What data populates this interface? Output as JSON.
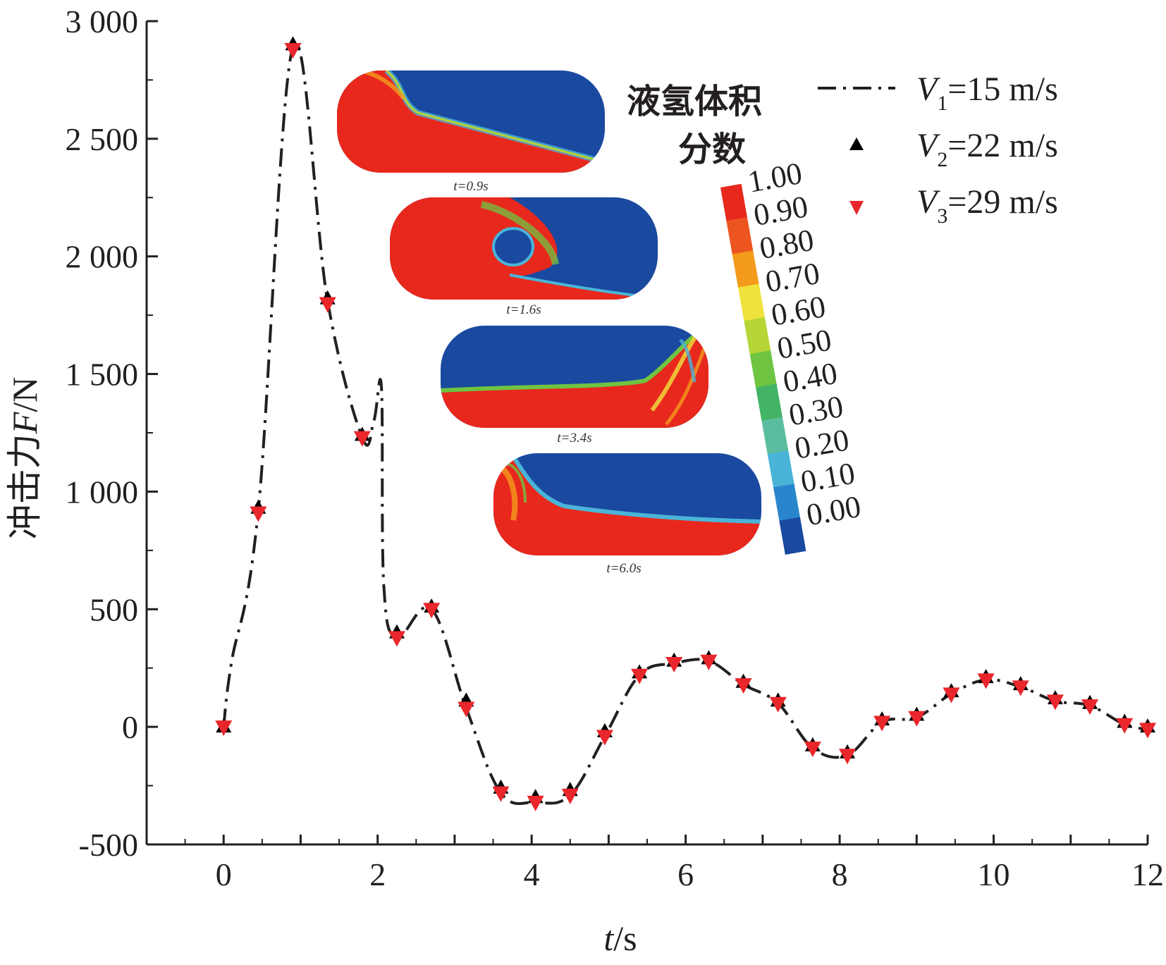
{
  "colors": {
    "axis": "#231f20",
    "line": "#231f20",
    "marker_v2": "#000000",
    "marker_v3": "#e8262b",
    "liquid": "#e8281d",
    "vapor": "#1a49a0"
  },
  "chart_data": {
    "type": "line",
    "xlabel": "t/s",
    "ylabel": "冲击力F/N",
    "xlim": [
      -1,
      12
    ],
    "ylim": [
      -500,
      3000
    ],
    "x_ticks": [
      0,
      2,
      4,
      6,
      8,
      10,
      12
    ],
    "y_ticks": [
      -500,
      0,
      500,
      1000,
      1500,
      2000,
      2500,
      3000
    ],
    "x_tick_labels": [
      "0",
      "2",
      "4",
      "6",
      "8",
      "10",
      "12"
    ],
    "y_tick_labels": [
      "-500",
      "0",
      "500",
      "1 000",
      "1 500",
      "2 000",
      "2 500",
      "3 000"
    ],
    "legend_position": "top-right",
    "series": [
      {
        "name": "V1=15 m/s",
        "name_parts": {
          "main": "V",
          "sub": "1",
          "rest": "=15 m/s"
        },
        "style": "dash-dot line",
        "x": [
          0,
          0.1,
          0.45,
          0.9,
          1.35,
          1.8,
          1.95,
          2.05,
          2.08,
          2.25,
          2.7,
          3.15,
          3.6,
          4.05,
          4.5,
          4.95,
          5.4,
          5.85,
          6.3,
          6.75,
          7.2,
          7.65,
          8.1,
          8.55,
          9.0,
          9.45,
          9.9,
          10.35,
          10.8,
          11.25,
          11.7,
          12.0
        ],
        "y": [
          0,
          270,
          920,
          2890,
          1810,
          1230,
          1300,
          1440,
          600,
          380,
          500,
          80,
          -280,
          -320,
          -290,
          -40,
          220,
          270,
          280,
          180,
          100,
          -90,
          -120,
          20,
          40,
          140,
          200,
          170,
          110,
          90,
          10,
          -10
        ]
      },
      {
        "name": "V2=22 m/s",
        "name_parts": {
          "main": "V",
          "sub": "2",
          "rest": "=22 m/s"
        },
        "style": "black triangle marker",
        "x": [
          0,
          0.45,
          0.9,
          1.35,
          1.8,
          2.25,
          2.7,
          3.15,
          3.6,
          4.05,
          4.5,
          4.95,
          5.4,
          5.85,
          6.3,
          6.75,
          7.2,
          7.65,
          8.1,
          8.55,
          9.0,
          9.45,
          9.9,
          10.35,
          10.8,
          11.25,
          11.7,
          12.0
        ],
        "y": [
          0,
          930,
          2900,
          1820,
          1240,
          400,
          510,
          110,
          -260,
          -300,
          -270,
          -20,
          230,
          280,
          290,
          190,
          110,
          -80,
          -110,
          30,
          50,
          150,
          210,
          180,
          120,
          100,
          20,
          0
        ]
      },
      {
        "name": "V3=29 m/s",
        "name_parts": {
          "main": "V",
          "sub": "3",
          "rest": "=29 m/s"
        },
        "style": "red inverted triangle marker",
        "x": [
          0,
          0.45,
          0.9,
          1.35,
          1.8,
          2.25,
          2.7,
          3.15,
          3.6,
          4.05,
          4.5,
          4.95,
          5.4,
          5.85,
          6.3,
          6.75,
          7.2,
          7.65,
          8.1,
          8.55,
          9.0,
          9.45,
          9.9,
          10.35,
          10.8,
          11.25,
          11.7,
          12.0
        ],
        "y": [
          0,
          910,
          2880,
          1800,
          1230,
          380,
          500,
          80,
          -280,
          -320,
          -290,
          -40,
          220,
          270,
          280,
          180,
          100,
          -90,
          -120,
          20,
          40,
          140,
          200,
          170,
          110,
          90,
          10,
          -10
        ]
      }
    ],
    "colorbar": {
      "title_line1": "液氢体积",
      "title_line2": "分数",
      "labels": [
        "1.00",
        "0.90",
        "0.80",
        "0.70",
        "0.60",
        "0.50",
        "0.40",
        "0.30",
        "0.20",
        "0.10",
        "0.00"
      ],
      "colors": [
        "#e8281d",
        "#ec5520",
        "#f49b1e",
        "#f0e23c",
        "#b6d536",
        "#6fc441",
        "#43b366",
        "#5bbda0",
        "#4ab4d8",
        "#2a86cc",
        "#1a49a0"
      ]
    },
    "snapshots": [
      {
        "label": "t=0.9s"
      },
      {
        "label": "t=1.6s"
      },
      {
        "label": "t=3.4s"
      },
      {
        "label": "t=6.0s"
      }
    ]
  }
}
